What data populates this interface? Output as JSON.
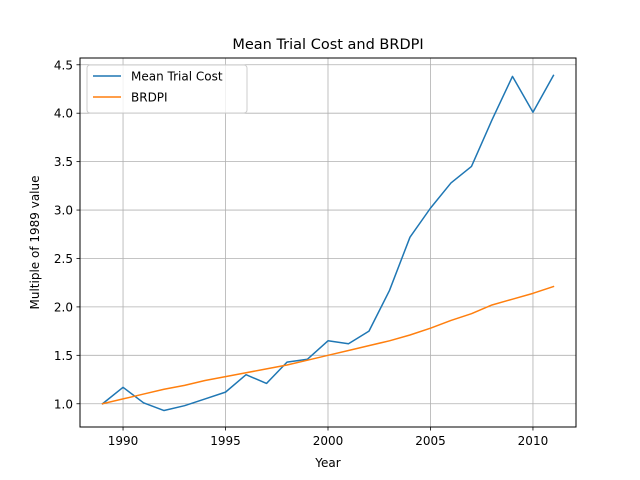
{
  "chart_data": {
    "type": "line",
    "title": "Mean Trial Cost and BRDPI",
    "xlabel": "Year",
    "ylabel": "Multiple of 1989 value",
    "xlim": [
      1987.9,
      2012.1
    ],
    "ylim": [
      0.76,
      4.57
    ],
    "grid": true,
    "legend_placement": "upper-left",
    "x_ticks": [
      1990,
      1995,
      2000,
      2005,
      2010
    ],
    "y_ticks": [
      1.0,
      1.5,
      2.0,
      2.5,
      3.0,
      3.5,
      4.0,
      4.5
    ],
    "y_tick_labels": [
      "1.0",
      "1.5",
      "2.0",
      "2.5",
      "3.0",
      "3.5",
      "4.0",
      "4.5"
    ],
    "x": [
      1989,
      1990,
      1991,
      1992,
      1993,
      1994,
      1995,
      1996,
      1997,
      1998,
      1999,
      2000,
      2001,
      2002,
      2003,
      2004,
      2005,
      2006,
      2007,
      2008,
      2009,
      2010,
      2011
    ],
    "series": [
      {
        "name": "Mean Trial Cost",
        "color": "#1f77b4",
        "values": [
          1.0,
          1.17,
          1.01,
          0.93,
          0.98,
          1.05,
          1.12,
          1.3,
          1.21,
          1.43,
          1.46,
          1.65,
          1.62,
          1.75,
          2.17,
          2.72,
          3.02,
          3.28,
          3.45,
          3.93,
          4.38,
          4.01,
          4.39
        ]
      },
      {
        "name": "BRDPI",
        "color": "#ff7f0e",
        "values": [
          1.0,
          1.05,
          1.1,
          1.15,
          1.19,
          1.24,
          1.28,
          1.32,
          1.36,
          1.4,
          1.45,
          1.5,
          1.55,
          1.6,
          1.65,
          1.71,
          1.78,
          1.86,
          1.93,
          2.02,
          2.08,
          2.14,
          2.21
        ]
      }
    ]
  }
}
